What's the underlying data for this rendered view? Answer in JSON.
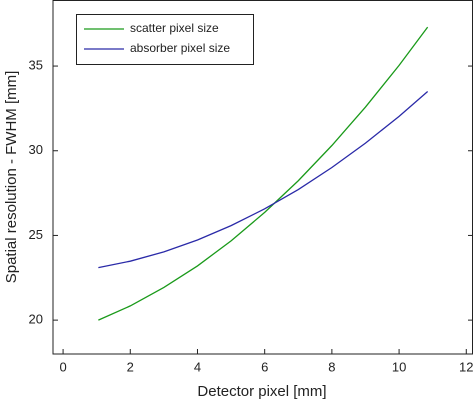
{
  "chart_data": {
    "type": "line",
    "x_label": "Detector pixel [mm]",
    "y_label": "Spatial resolution - FWHM [mm]",
    "x": [
      1.05,
      2,
      3,
      4,
      5,
      6,
      7,
      8,
      9,
      10,
      10.85
    ],
    "series": [
      {
        "name": "scatter pixel size",
        "color": "#1a9a1a",
        "values": [
          20.0,
          20.84,
          21.93,
          23.2,
          24.68,
          26.36,
          28.23,
          30.31,
          32.58,
          35.04,
          37.3
        ]
      },
      {
        "name": "absorber pixel size",
        "color": "#2a2aa8",
        "values": [
          23.1,
          23.48,
          24.03,
          24.73,
          25.58,
          26.57,
          27.71,
          29.01,
          30.45,
          32.03,
          33.5
        ]
      }
    ],
    "xlim": [
      -0.3,
      12.2
    ],
    "xticks": [
      0,
      2,
      4,
      6,
      8,
      10,
      12
    ],
    "ylim": [
      18,
      38.9
    ],
    "yticks": [
      20,
      25,
      30,
      35
    ],
    "grid": false,
    "legend": "upper left"
  }
}
